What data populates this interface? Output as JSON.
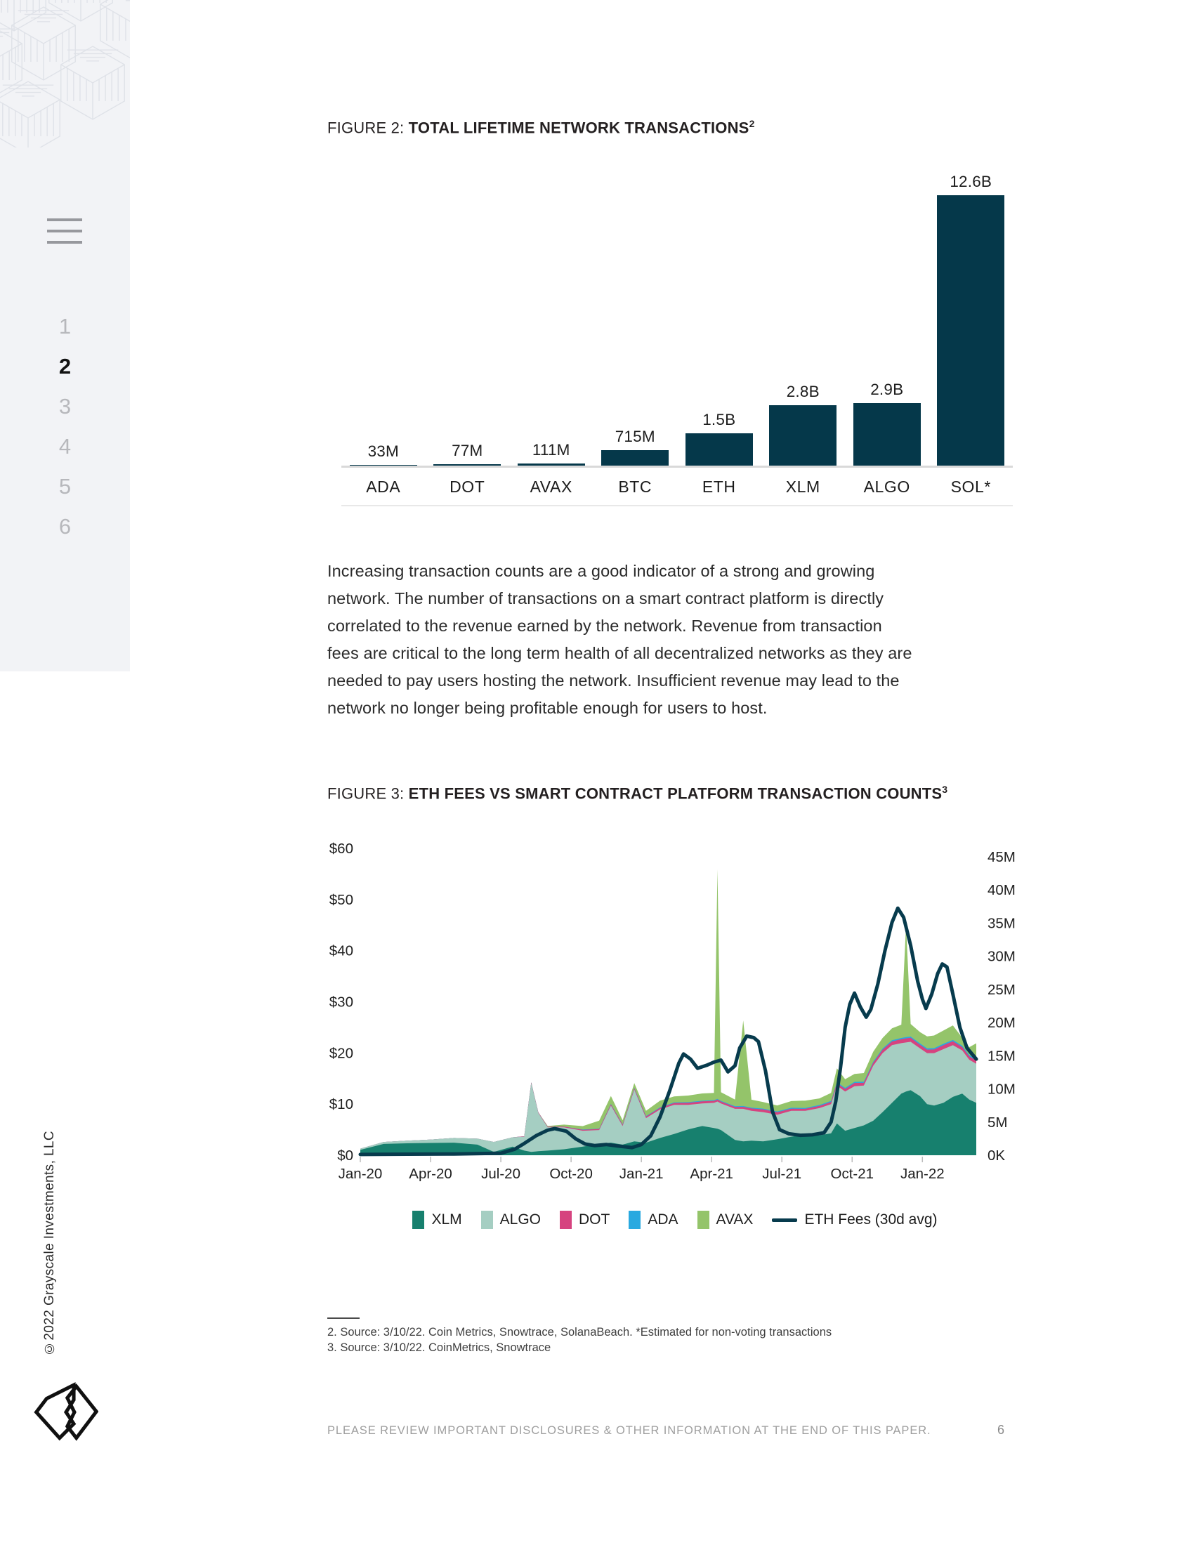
{
  "sidebar": {
    "menu_icon": "hamburger-icon",
    "nav_items": [
      {
        "label": "1",
        "active": false
      },
      {
        "label": "2",
        "active": true
      },
      {
        "label": "3",
        "active": false
      },
      {
        "label": "4",
        "active": false
      },
      {
        "label": "5",
        "active": false
      },
      {
        "label": "6",
        "active": false
      }
    ],
    "copyright": "©2022 Grayscale Investments, LLC"
  },
  "figure2": {
    "label": "FIGURE 2:",
    "title": " TOTAL LIFETIME NETWORK TRANSACTIONS",
    "superscript": "2"
  },
  "figure3": {
    "label": "FIGURE 3:",
    "title": " ETH FEES VS SMART CONTRACT PLATFORM TRANSACTION COUNTS",
    "superscript": "3"
  },
  "paragraph_lines": "Increasing transaction counts are a good indicator of a strong and growing\nnetwork. The number of transactions on a smart contract platform is directly\ncorrelated to the revenue earned by the network. Revenue from transaction\nfees are critical to the long term health of all decentralized networks as they are\nneeded to pay users hosting the network. Insufficient revenue may lead to the\nnetwork no longer being profitable enough for users to host.",
  "chart_data": [
    {
      "type": "bar",
      "title": "Total Lifetime Network Transactions",
      "categories": [
        "ADA",
        "DOT",
        "AVAX",
        "BTC",
        "ETH",
        "XLM",
        "ALGO",
        "SOL*"
      ],
      "values_millions": [
        33,
        77,
        111,
        715,
        1500,
        2800,
        2900,
        12600
      ],
      "value_labels": [
        "33M",
        "77M",
        "111M",
        "715M",
        "1.5B",
        "2.8B",
        "2.9B",
        "12.6B"
      ],
      "bar_color": "#05384a",
      "ylim_millions": [
        0,
        12600
      ],
      "grid": false
    },
    {
      "type": "area",
      "subtype": "stacked-area-with-line",
      "title": "ETH Fees vs Smart Contract Platform Transaction Counts",
      "x_unit": "months since Jan-2020",
      "x_range": [
        0,
        26.3
      ],
      "x_tick_labels": [
        "Jan-20",
        "Apr-20",
        "Jul-20",
        "Oct-20",
        "Jan-21",
        "Apr-21",
        "Jul-21",
        "Oct-21",
        "Jan-22"
      ],
      "x_ticks_months": [
        0,
        3,
        6,
        9,
        12,
        15,
        18,
        21,
        24
      ],
      "left_axis": {
        "unit": "USD",
        "labels": [
          "$0",
          "$10",
          "$20",
          "$30",
          "$40",
          "$50",
          "$60"
        ],
        "range": [
          0,
          60
        ]
      },
      "right_axis": {
        "unit": "transactions",
        "labels": [
          "0K",
          "5M",
          "10M",
          "15M",
          "20M",
          "25M",
          "30M",
          "35M",
          "40M",
          "45M"
        ],
        "range_millions": [
          0,
          45
        ]
      },
      "legend_position": "bottom",
      "x": [
        0,
        1,
        2,
        3,
        4,
        5,
        5.7,
        6.5,
        7,
        7.3,
        7.6,
        8,
        8.7,
        9.5,
        10.2,
        10.7,
        11.2,
        11.7,
        12.2,
        12.8,
        13.4,
        14,
        14.6,
        15.1,
        15.25,
        15.4,
        16,
        16.35,
        16.7,
        17.2,
        17.8,
        18.4,
        19,
        19.6,
        20.1,
        20.35,
        20.7,
        21.1,
        21.5,
        21.9,
        22.3,
        22.7,
        23.1,
        23.3,
        23.5,
        23.9,
        24.2,
        24.5,
        24.9,
        25.3,
        25.7,
        26,
        26.3
      ],
      "series": [
        {
          "name": "XLM",
          "color": "#17806e",
          "axis": "right",
          "values_millions": [
            0.8,
            1.7,
            1.8,
            1.85,
            1.9,
            1.6,
            0.5,
            1.3,
            0.7,
            0.5,
            0.6,
            0.7,
            0.9,
            1.3,
            1.7,
            1.9,
            1.6,
            2.1,
            1.9,
            2.6,
            3.2,
            3.9,
            4.4,
            4.1,
            4.0,
            3.8,
            2.3,
            2.1,
            2.2,
            2.1,
            2.4,
            2.8,
            3.1,
            3.0,
            3.3,
            4.8,
            3.7,
            4.1,
            4.5,
            5.2,
            6.5,
            7.9,
            9.3,
            9.6,
            9.8,
            8.9,
            7.7,
            7.5,
            7.9,
            8.8,
            9.3,
            8.4,
            7.9
          ]
        },
        {
          "name": "ALGO",
          "color": "#a5cec2",
          "axis": "right",
          "values_millions": [
            0.2,
            0.3,
            0.4,
            0.5,
            0.7,
            0.9,
            1.5,
            1.4,
            2.1,
            10.4,
            5.8,
            3.5,
            3.3,
            2.4,
            2.1,
            5.6,
            2.8,
            7.8,
            3.7,
            4.3,
            4.4,
            3.7,
            3.4,
            3.8,
            4.1,
            4.0,
            4.7,
            4.9,
            4.5,
            4.4,
            3.7,
            3.9,
            3.6,
            4.1,
            4.4,
            5.7,
            5.9,
            6.3,
            6.0,
            8.3,
            8.9,
            8.7,
            7.6,
            7.4,
            7.3,
            7.2,
            7.7,
            7.9,
            8.1,
            7.8,
            6.5,
            6.0,
            5.9
          ]
        },
        {
          "name": "DOT",
          "color": "#d6437f",
          "axis": "right",
          "values_millions": [
            0,
            0,
            0,
            0,
            0,
            0,
            0,
            0,
            0.06,
            0.08,
            0.08,
            0.1,
            0.12,
            0.14,
            0.16,
            0.18,
            0.2,
            0.2,
            0.22,
            0.25,
            0.28,
            0.3,
            0.32,
            0.3,
            0.3,
            0.3,
            0.28,
            0.3,
            0.35,
            0.4,
            0.38,
            0.32,
            0.3,
            0.32,
            0.34,
            0.36,
            0.4,
            0.5,
            0.42,
            0.44,
            0.5,
            0.55,
            0.6,
            0.62,
            0.6,
            0.55,
            0.52,
            0.55,
            0.6,
            0.58,
            0.52,
            0.5,
            0.48
          ]
        },
        {
          "name": "ADA",
          "color": "#29a9e0",
          "axis": "right",
          "values_millions": [
            0,
            0,
            0,
            0,
            0,
            0,
            0,
            0,
            0,
            0,
            0,
            0,
            0,
            0.05,
            0.05,
            0.06,
            0.06,
            0.07,
            0.08,
            0.08,
            0.09,
            0.1,
            0.1,
            0.1,
            0.1,
            0.1,
            0.12,
            0.12,
            0.12,
            0.13,
            0.13,
            0.14,
            0.14,
            0.15,
            0.15,
            0.15,
            0.16,
            0.16,
            0.17,
            0.17,
            0.18,
            0.18,
            0.18,
            0.19,
            0.19,
            0.2,
            0.2,
            0.2,
            0.2,
            0.2,
            0.2,
            0.2,
            0.2
          ]
        },
        {
          "name": "AVAX",
          "color": "#94c46a",
          "axis": "right",
          "values_millions": [
            0,
            0,
            0,
            0,
            0,
            0,
            0,
            0,
            0,
            0,
            0,
            0.1,
            0.3,
            0.5,
            1.2,
            1.2,
            0.6,
            0.7,
            0.8,
            1.0,
            0.9,
            1.0,
            1.1,
            1.1,
            34.6,
            1.3,
            1.0,
            12.9,
            1.2,
            1.0,
            0.9,
            1.0,
            1.1,
            1.0,
            1.2,
            2.1,
            1.3,
            1.2,
            1.3,
            1.5,
            1.6,
            1.8,
            2.0,
            16.8,
            1.9,
            1.7,
            1.8,
            1.9,
            2.0,
            2.2,
            1.2,
            1.2,
            2.4
          ]
        }
      ],
      "line_series": {
        "name": "ETH Fees (30d avg)",
        "color": "#073b4d",
        "axis": "left",
        "x": [
          0,
          2,
          4,
          6,
          6.6,
          7,
          7.5,
          8,
          8.3,
          8.8,
          9.2,
          9.6,
          10,
          10.5,
          11,
          11.6,
          12,
          12.4,
          12.8,
          13.2,
          13.6,
          13.8,
          14.1,
          14.4,
          14.8,
          15.1,
          15.4,
          15.7,
          16,
          16.2,
          16.5,
          16.8,
          17,
          17.3,
          17.6,
          17.9,
          18.3,
          18.8,
          19.3,
          19.8,
          20.1,
          20.3,
          20.5,
          20.7,
          20.9,
          21.1,
          21.35,
          21.6,
          21.8,
          22.1,
          22.4,
          22.7,
          22.95,
          23.2,
          23.5,
          23.8,
          24,
          24.15,
          24.4,
          24.65,
          24.85,
          25.05,
          25.3,
          25.6,
          25.9,
          26.3
        ],
        "values_usd": [
          0.15,
          0.2,
          0.25,
          0.4,
          1.2,
          2.3,
          3.8,
          4.9,
          5.2,
          4.7,
          3.2,
          2.2,
          1.9,
          2.1,
          1.8,
          1.5,
          2.1,
          3.8,
          7.5,
          12.5,
          18,
          19.8,
          18.8,
          17,
          17.6,
          18.2,
          18.6,
          16.3,
          17.5,
          21,
          23.3,
          23,
          22.2,
          16.5,
          8.5,
          5,
          4.2,
          3.9,
          4,
          4.4,
          6.5,
          10.5,
          17,
          25,
          29.5,
          31.7,
          29,
          27,
          28.5,
          33.5,
          40,
          45.5,
          48.3,
          46.5,
          41,
          34,
          30.5,
          28.7,
          31.5,
          35.5,
          37.4,
          36.8,
          31.5,
          25,
          21,
          18.8
        ]
      },
      "legend": [
        {
          "name": "XLM",
          "color": "#17806e",
          "kind": "swatch"
        },
        {
          "name": "ALGO",
          "color": "#a5cec2",
          "kind": "swatch"
        },
        {
          "name": "DOT",
          "color": "#d6437f",
          "kind": "swatch"
        },
        {
          "name": "ADA",
          "color": "#29a9e0",
          "kind": "swatch"
        },
        {
          "name": "AVAX",
          "color": "#94c46a",
          "kind": "swatch"
        },
        {
          "name": "ETH Fees (30d avg)",
          "color": "#073b4d",
          "kind": "line"
        }
      ]
    }
  ],
  "footnotes": "2. Source: 3/10/22. Coin Metrics, Snowtrace, SolanaBeach. *Estimated for non-voting transactions\n3. Source: 3/10/22. CoinMetrics, Snowtrace",
  "footer": {
    "disclaimer": "PLEASE REVIEW IMPORTANT DISCLOSURES & OTHER INFORMATION AT THE END OF THIS PAPER.",
    "page_number": "6"
  },
  "colors": {
    "bar_navy": "#05384a",
    "sidebar_bg": "#f2f3f6",
    "footer_gray": "#9e9e9e"
  }
}
